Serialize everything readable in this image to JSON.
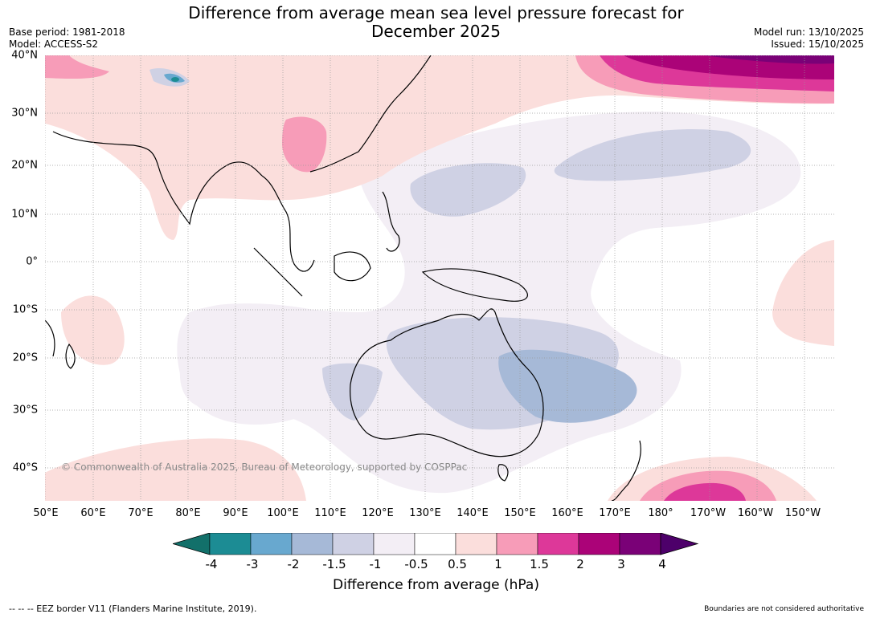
{
  "title_line1": "Difference from average mean sea level pressure forecast for",
  "title_line2": "December 2025",
  "base_period": "Base period: 1981-2018",
  "model": "Model: ACCESS-S2",
  "model_run": "Model run: 13/10/2025",
  "issued": "Issued: 15/10/2025",
  "x_ticks": [
    "50°E",
    "60°E",
    "70°E",
    "80°E",
    "90°E",
    "100°E",
    "110°E",
    "120°E",
    "130°E",
    "140°E",
    "150°E",
    "160°E",
    "170°E",
    "180°",
    "170°W",
    "160°W",
    "150°W"
  ],
  "y_ticks": [
    "40°N",
    "30°N",
    "20°N",
    "10°N",
    "0°",
    "10°S",
    "20°S",
    "30°S",
    "40°S"
  ],
  "copyright": "© Commonwealth of Australia 2025, Bureau of Meteorology, supported by COSPPac",
  "colorbar": {
    "ticks": [
      "-4",
      "-3",
      "-2",
      "-1.5",
      "-1",
      "-0.5",
      "0.5",
      "1",
      "1.5",
      "2",
      "3",
      "4"
    ],
    "colors": [
      "#12706a",
      "#1c8c94",
      "#68a8cf",
      "#a6b9d7",
      "#cfd1e4",
      "#f3eef5",
      "#ffffff",
      "#fbdedc",
      "#f79cb8",
      "#dd3899",
      "#ab0378",
      "#7a0177",
      "#4d006a"
    ],
    "label": "Difference from average (hPa)"
  },
  "eez_note": "--  --  -- EEZ border V11 (Flanders Marine Institute, 2019).",
  "boundary_note": "Boundaries are not considered authoritative"
}
